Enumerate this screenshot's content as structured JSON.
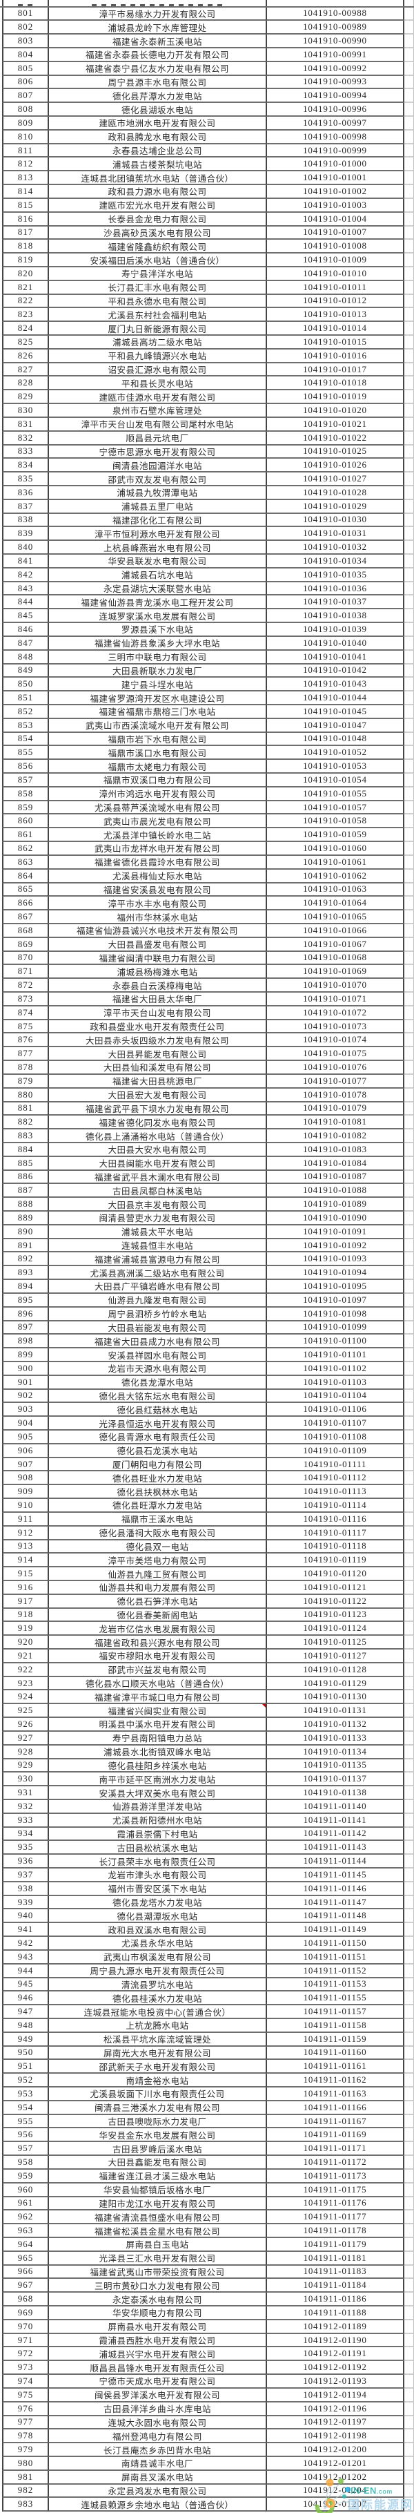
{
  "table": {
    "comment_marker_row": "925",
    "comment_marker_color": "#cc0000",
    "rows": [
      [
        "801",
        "漳平市易缘水力开发有限公司",
        "1041910-00988"
      ],
      [
        "802",
        "浦城县龙岭下水库管理处",
        "1041910-00989"
      ],
      [
        "803",
        "福建省永泰新玉溪电站",
        "1041910-00990"
      ],
      [
        "804",
        "福建省永泰县长德电力开发有限公司",
        "1041910-00991"
      ],
      [
        "805",
        "福建省泰宁县亿友水力发电有限公司",
        "1041910-00992"
      ],
      [
        "806",
        "周宁县源丰水电有限公司",
        "1041910-00993"
      ],
      [
        "807",
        "德化县芹潭水力发电站",
        "1041910-00994"
      ],
      [
        "808",
        "德化县湖坂水电站",
        "1041910-00996"
      ],
      [
        "809",
        "建瓯市地洲水电开发有限公司",
        "1041910-00997"
      ],
      [
        "810",
        "政和县腾龙水电有限公司",
        "1041910-00998"
      ],
      [
        "811",
        "永春县达埔企业总公司",
        "1041910-00999"
      ],
      [
        "812",
        "浦城县古楼茶梨坑电站",
        "1041910-01000"
      ],
      [
        "813",
        "连城县北团镇蕉坑水电站（普通合伙）",
        "1041910-01001"
      ],
      [
        "814",
        "政和县力源水电有限公司",
        "1041910-01002"
      ],
      [
        "815",
        "建瓯市宏光水电开发有限公司",
        "1041910-01003"
      ],
      [
        "816",
        "长泰县金龙电力有限公司",
        "1041910-01004"
      ],
      [
        "817",
        "沙县高砂员溪水电有限公司",
        "1041910-01007"
      ],
      [
        "818",
        "福建省隆鑫纺织有限公司",
        "1041910-01008"
      ],
      [
        "819",
        "安溪福田后溪水电站（普通合伙）",
        "1041910-01009"
      ],
      [
        "820",
        "寿宁县泮洋水电站",
        "1041910-01010"
      ],
      [
        "821",
        "长汀县汇丰水电有限公司",
        "1041910-01011"
      ],
      [
        "822",
        "平和县永德水电有限公司",
        "1041910-01012"
      ],
      [
        "823",
        "尤溪县东村社会福利电站",
        "1041910-01013"
      ],
      [
        "824",
        "厦门丸日新能源有限公司",
        "1041910-01014"
      ],
      [
        "825",
        "浦城县高坊二级水电站",
        "1041910-01015"
      ],
      [
        "826",
        "平和县九峰镇源兴水电站",
        "1041910-01016"
      ],
      [
        "827",
        "诏安县汇源水电有限公司",
        "1041910-01017"
      ],
      [
        "828",
        "平和县长灵水电站",
        "1041910-01018"
      ],
      [
        "829",
        "建瓯市佳源水电开发有限公司",
        "1041910-01019"
      ],
      [
        "830",
        "泉州市石壁水库管理处",
        "1041910-01020"
      ],
      [
        "831",
        "漳平市天台山发电有限公司尾村水电站",
        "1041910-01021"
      ],
      [
        "832",
        "顺昌县元坑电厂",
        "1041910-01022"
      ],
      [
        "833",
        "宁德市思源水电开发有限公司",
        "1041910-01025"
      ],
      [
        "834",
        "闽清县池园湄洋水电站",
        "1041910-01026"
      ],
      [
        "835",
        "邵武市双友发电有限公司",
        "1041910-01027"
      ],
      [
        "836",
        "浦城县九牧渭潭电站",
        "1041910-01028"
      ],
      [
        "837",
        "浦城县五里厂电站",
        "1041910-01029"
      ],
      [
        "838",
        "福建邵化化工有限公司",
        "1041910-01030"
      ],
      [
        "839",
        "漳平市恒利源水电开发有限公司",
        "1041910-01031"
      ],
      [
        "840",
        "上杭县峰燕岩水电有限公司",
        "1041910-01032"
      ],
      [
        "841",
        "华安县联发水电有限公司",
        "1041910-01034"
      ],
      [
        "842",
        "浦城县石坑水电站",
        "1041910-01035"
      ],
      [
        "843",
        "永定县湖坑大溪联营水电站",
        "1041910-01036"
      ],
      [
        "844",
        "福建省仙游县青龙溪水电工程开发公司",
        "1041910-01037"
      ],
      [
        "845",
        "连城罗家溪水电发展有限公司",
        "1041910-01038"
      ],
      [
        "846",
        "罗源县溪下水电站",
        "1041910-01039"
      ],
      [
        "847",
        "福建省仙游县象溪乡大坪水电站",
        "1041910-01040"
      ],
      [
        "848",
        "三明市中联电力有限公司",
        "1041910-01041"
      ],
      [
        "849",
        "大田县新联水力发电厂",
        "1041910-01042"
      ],
      [
        "850",
        "建宁县斗埕水电站",
        "1041910-01043"
      ],
      [
        "851",
        "福建省罗源湾开发区水电建设公司",
        "1041910-01044"
      ],
      [
        "852",
        "福建省福鼎市鼎榕三门水电站",
        "1041910-01045"
      ],
      [
        "853",
        "武夷山市西溪流域水电开发有限公司",
        "1041910-01047"
      ],
      [
        "854",
        "福鼎市岩下水电有限公司",
        "1041910-01048"
      ],
      [
        "855",
        "福鼎市溪口水电有限公司",
        "1041910-01052"
      ],
      [
        "856",
        "福鼎市太姥电力有限公司",
        "1041910-01053"
      ],
      [
        "857",
        "福鼎市双溪口电力有限公司",
        "1041910-01054"
      ],
      [
        "858",
        "漳州市鸿远水电开发有限公司",
        "1041910-01055"
      ],
      [
        "859",
        "尤溪县蒂芦溪流域水电有限公司",
        "1041910-01057"
      ],
      [
        "860",
        "武夷山市晨光发电有限公司",
        "1041910-01058"
      ],
      [
        "861",
        "尤溪县洋中镇长岭水电二站",
        "1041910-01059"
      ],
      [
        "862",
        "武夷山市龙祥水电开发有限公司",
        "1041910-01060"
      ],
      [
        "863",
        "福建省德化县霞玲水电有限公司",
        "1041910-01061"
      ],
      [
        "864",
        "尤溪县梅仙丈际水电站",
        "1041910-01062"
      ],
      [
        "865",
        "福建省安溪县发电有限公司",
        "1041910-01063"
      ],
      [
        "866",
        "漳平市水丰水电有限公司",
        "1041910-01064"
      ],
      [
        "867",
        "福州市华林溪水电站",
        "1041910-01065"
      ],
      [
        "868",
        "福建省仙游县诚兴水电技术开发有限公司",
        "1041910-01066"
      ],
      [
        "869",
        "大田县昌盛发电有限公司",
        "1041910-01067"
      ],
      [
        "870",
        "福建省闽清中联电力有限公司",
        "1041910-01068"
      ],
      [
        "871",
        "浦城县杨梅滩水电站",
        "1041910-01069"
      ],
      [
        "872",
        "永泰县白云溪樟梅电站",
        "1041910-01070"
      ],
      [
        "873",
        "福建省大田县太华电厂",
        "1041910-01071"
      ],
      [
        "874",
        "漳平市天台山发电有限公司",
        "1041910-01072"
      ],
      [
        "875",
        "政和县盛业水电开发有限责任公司",
        "1041910-01073"
      ],
      [
        "876",
        "大田县赤头坂四级水力发电有限公司",
        "1041910-01074"
      ],
      [
        "877",
        "大田县昇能发电有限公司",
        "1041910-01075"
      ],
      [
        "878",
        "大田县仙和溪发电有限公司",
        "1041910-01076"
      ],
      [
        "879",
        "福建省大田县桃源电厂",
        "1041910-01077"
      ],
      [
        "880",
        "大田县宏大发电有限公司",
        "1041910-01078"
      ],
      [
        "881",
        "福建省武平县下坝水力发电有限公司",
        "1041910-01079"
      ],
      [
        "882",
        "福建省德化同发水电有限公司",
        "1041910-01081"
      ],
      [
        "883",
        "德化县上涌涌裕水电站（普通合伙）",
        "1041910-01082"
      ],
      [
        "884",
        "大田县大安水电有限公司",
        "1041910-01083"
      ],
      [
        "885",
        "大田县闽能水电开发有限公司",
        "1041910-01084"
      ],
      [
        "886",
        "福建省武平县木澜水电有限公司",
        "1041910-01087"
      ],
      [
        "887",
        "古田县凤都白林溪电站",
        "1041910-01088"
      ],
      [
        "888",
        "大田县京丰发电有限公司",
        "1041910-01089"
      ],
      [
        "889",
        "闽清县营吏水力发电有限公司",
        "1041910-01090"
      ],
      [
        "890",
        "浦城县太平水电站",
        "1041910-01091"
      ],
      [
        "891",
        "连城县恒丰水电站",
        "1041910-01092"
      ],
      [
        "892",
        "福建省浦城县富源电力有限公司",
        "1041910-01093"
      ],
      [
        "893",
        "尤溪县高洲溪二级站水电有限公司",
        "1041910-01094"
      ],
      [
        "894",
        "大田县广平镇岩峰水电有限公司",
        "1041910-01095"
      ],
      [
        "895",
        "仙游县九隆发电有限公司",
        "1041910-01097"
      ],
      [
        "896",
        "周宁县泗桥乡竹岭水电站",
        "1041910-01098"
      ],
      [
        "897",
        "大田县岩能发电有限公司",
        "1041910-01099"
      ],
      [
        "898",
        "福建省大田县成力水电有限公司",
        "1041910-01100"
      ],
      [
        "899",
        "安溪县祥园水电有限公司",
        "1041910-01101"
      ],
      [
        "900",
        "龙岩市天源水电有限公司",
        "1041910-01102"
      ],
      [
        "901",
        "德化县龙潭水电站",
        "1041910-01103"
      ],
      [
        "902",
        "德化县大铭东坛水电有限公司",
        "1041910-01104"
      ],
      [
        "903",
        "德化县红菇林水电站",
        "1041910-01106"
      ],
      [
        "904",
        "光泽县恒运水电开发有限公司",
        "1041910-01107"
      ],
      [
        "905",
        "德化县青源水电有限责任公司",
        "1041910-01108"
      ],
      [
        "906",
        "德化县石龙溪水电站",
        "1041910-01109"
      ],
      [
        "907",
        "厦门朝阳电力有限公司",
        "1041910-01111"
      ],
      [
        "908",
        "德化县旺业水力发电站",
        "1041910-01112"
      ],
      [
        "909",
        "德化县扶枫林水电站",
        "1041910-01113"
      ],
      [
        "910",
        "德化县旺潭水力发电站",
        "1041910-01114"
      ],
      [
        "911",
        "福鼎市王溪水电站",
        "1041910-01116"
      ],
      [
        "912",
        "德化县潘祠大阪水电有限公司",
        "1041910-01117"
      ],
      [
        "913",
        "德化县双一电站",
        "1041910-01118"
      ],
      [
        "914",
        "漳平市美塔电力有限公司",
        "1041910-01119"
      ],
      [
        "915",
        "仙游县九隆工贸有限公司",
        "1041910-01120"
      ],
      [
        "916",
        "仙游县共和电力发展有限公司",
        "1041910-01121"
      ],
      [
        "917",
        "德化县石笋洋水电站",
        "1041910-01122"
      ],
      [
        "918",
        "德化县春美新阁电站",
        "1041910-01123"
      ],
      [
        "919",
        "龙岩市亿信水电发展有限公司",
        "1041910-01124"
      ],
      [
        "920",
        "福建省政和县兴源水电有限公司",
        "1041910-01125"
      ],
      [
        "921",
        "福安市穆阳水电开发有限公司",
        "1041910-01127"
      ],
      [
        "922",
        "邵武市兴益发电有限公司",
        "1041910-01128"
      ],
      [
        "923",
        "德化县水口顺天水电站（普通合伙）",
        "1041910-01129"
      ],
      [
        "924",
        "福建省漳平市城口电力有限公司",
        "1041910-01130"
      ],
      [
        "925",
        "福建省兴闽实业有限公司",
        "1041910-01131"
      ],
      [
        "926",
        "明溪县中溪水电开发有限公司",
        "1041910-01132"
      ],
      [
        "927",
        "寿宁县南阳镇电力总站",
        "1041910-01133"
      ],
      [
        "928",
        "浦城县水北街镇双峰水电站",
        "1041910-01134"
      ],
      [
        "929",
        "德化县桂阳乡梓溪水电站",
        "1041910-01135"
      ],
      [
        "930",
        "南平市延平区南洲水力发电站",
        "1041910-01137"
      ],
      [
        "931",
        "安溪县大坪双美水电有限公司",
        "1041910-01138"
      ],
      [
        "932",
        "仙游县游洋里洋发电站",
        "1041911-01140"
      ],
      [
        "933",
        "尤溪县新阳德州水电站",
        "1041911-01141"
      ],
      [
        "934",
        "霞浦县崇儒下村电站",
        "1041911-01142"
      ],
      [
        "935",
        "古田县松杭溪水电站",
        "1041911-01143"
      ],
      [
        "936",
        "长汀县荣丰水电有限责任公司",
        "1041911-01144"
      ],
      [
        "937",
        "龙岩市津头水电有限公司",
        "1041911-01145"
      ],
      [
        "938",
        "福州市晋安区溪下水电站",
        "1041911-01146"
      ],
      [
        "939",
        "德化县龙塔水力发电站",
        "1041911-01147"
      ],
      [
        "940",
        "德化县潮潭坂水电站",
        "1041911-01148"
      ],
      [
        "941",
        "政和县双溪水电有限公司",
        "1041911-01149"
      ],
      [
        "942",
        "尤溪县永华水电站",
        "1041911-01150"
      ],
      [
        "943",
        "武夷山市枫溪发电有限公司",
        "1041911-01151"
      ],
      [
        "944",
        "周宁县九源水电开发有限责任公司",
        "1041911-01152"
      ],
      [
        "945",
        "清流县罗坑水电站",
        "1041911-01153"
      ],
      [
        "946",
        "德化县桂溪水力发电站",
        "1041911-01155"
      ],
      [
        "947",
        "连城县冠能水电投资中心(普通合伙）",
        "1041911-01157"
      ],
      [
        "948",
        "上杭龙腾水电站",
        "1041911-01158"
      ],
      [
        "949",
        "松溪县平坑水库流域管理处",
        "1041911-01159"
      ],
      [
        "950",
        "屏南光大水电开发有限公司",
        "1041911-01160"
      ],
      [
        "951",
        "邵武新天子水电开发有限公司",
        "1041911-01161"
      ],
      [
        "952",
        "南靖金裕水电站",
        "1041911-01162"
      ],
      [
        "953",
        "尤溪县坂面下川水电有限责任公司",
        "1041911-01163"
      ],
      [
        "954",
        "闽清县三港溪水力发电有限公司",
        "1041911-01166"
      ],
      [
        "955",
        "古田县噢咙际水力发电厂",
        "1041911-01167"
      ],
      [
        "956",
        "华安县金东水电发展有限公司",
        "1041911-01169"
      ],
      [
        "957",
        "古田县罗峰后溪水电站",
        "1041911-01171"
      ],
      [
        "958",
        "大田县鑫能发电有限公司",
        "1041911-01172"
      ],
      [
        "959",
        "福建省连江县才溪三级水电站",
        "1041911-01173"
      ],
      [
        "960",
        "华安县仙都镇后坂格水电厂",
        "1041911-01175"
      ],
      [
        "961",
        "建阳市龙江水电开发有限公司",
        "1041911-01176"
      ],
      [
        "962",
        "福建省清流县恒盛水电有限公司",
        "1041911-01177"
      ],
      [
        "963",
        "福建省松溪县金星水电有限公司",
        "1041911-01178"
      ],
      [
        "964",
        "屏南县白玉电站",
        "1041911-01179"
      ],
      [
        "965",
        "光泽县三汇水电开发有限公司",
        "1041911-01181"
      ],
      [
        "966",
        "福建省武夷山市带荣投资有限公司",
        "1041911-01183"
      ],
      [
        "967",
        "三明市黄砂口水力发电有限公司",
        "1041911-01184"
      ],
      [
        "968",
        "永定泰溪水电有限公司",
        "1041911-01186"
      ],
      [
        "969",
        "华安华顺电力有限公司",
        "1041911-01188"
      ],
      [
        "970",
        "屏南县水电开发有限公司",
        "1041912-01189"
      ],
      [
        "971",
        "霞浦县西胜水电开发有限公司",
        "1041912-01190"
      ],
      [
        "972",
        "浦城县兴宇水电开发有限公司",
        "1041912-01191"
      ],
      [
        "973",
        "顺昌县昌锋水电开发有限责任公司",
        "1041912-01192"
      ],
      [
        "974",
        "宁德市天成水电开发有限公司",
        "1041912-01193"
      ],
      [
        "975",
        "闽侯县罗洋溪水电开发有限公司",
        "1041912-01194"
      ],
      [
        "976",
        "古田县泮洋乡曲斗水库电站",
        "1041912-01196"
      ],
      [
        "977",
        "连城大永固水电有限公司",
        "1041912-01197"
      ],
      [
        "978",
        "福州登鸿电力有限公司",
        "1041912-01198"
      ],
      [
        "979",
        "长汀县庵杰乡赤凹背水电站",
        "1041912-01200"
      ],
      [
        "980",
        "南靖县诚丰水电厂",
        "1041912-01201"
      ],
      [
        "981",
        "屏南县叉溪水电站",
        "1041912-01202"
      ],
      [
        "982",
        "永定县鸿发水电有限公司",
        "1041912-01204"
      ],
      [
        "983",
        "连城县赖源乡余地水电站（普通合伙）",
        "1041912-01207"
      ]
    ]
  },
  "watermark": {
    "site": "IN-EN",
    "site_suffix": ".com",
    "site_cn": "国际能源网"
  },
  "colors": {
    "text": "#2b2b2b",
    "grid_horizontal": "#6e6e6e",
    "grid_vertical": "#454545",
    "stub_line": "#cfcfcf",
    "comment_marker": "#cc0000",
    "watermark_teal": "#2fb5ad",
    "watermark_light_blue": "#a9d2ec",
    "watermark_orange": "#f7a83c",
    "watermark_green": "#7ec143"
  }
}
